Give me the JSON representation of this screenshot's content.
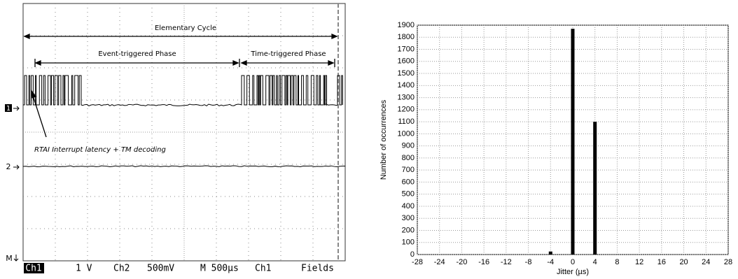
{
  "scope": {
    "annotations": {
      "cycle": "Elementary Cycle",
      "event": "Event-triggered Phase",
      "time": "Time-triggered Phase",
      "latency": "RTAI Interrupt latency + TM decoding"
    },
    "markers": [
      "1",
      "2",
      "M"
    ],
    "status": [
      "Ch1",
      "1 V",
      "Ch2",
      "500mV",
      "M 500µs",
      "Ch1",
      "Fields"
    ]
  },
  "chart_data": {
    "type": "bar",
    "x": [
      -4,
      0,
      4
    ],
    "values": [
      25,
      1870,
      1100
    ],
    "color": "#000000",
    "xlim": [
      -28,
      28
    ],
    "xticks": [
      -28,
      -24,
      -20,
      -16,
      -12,
      -8,
      -4,
      0,
      4,
      8,
      12,
      16,
      20,
      24,
      28
    ],
    "ylim": [
      0,
      1900
    ],
    "yticks": [
      0,
      100,
      200,
      300,
      400,
      500,
      600,
      700,
      800,
      900,
      1000,
      1100,
      1200,
      1300,
      1400,
      1500,
      1600,
      1700,
      1800,
      1900
    ],
    "grid": true,
    "xlabel": "Jitter (µs)",
    "ylabel": "Number of occurrences"
  }
}
